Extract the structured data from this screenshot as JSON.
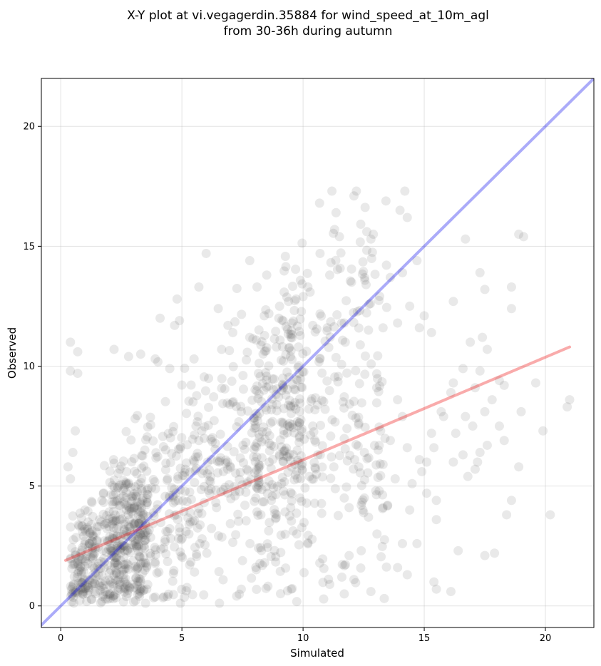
{
  "chart_data": {
    "type": "scatter",
    "title": "X-Y plot at vi.vegagerdin.35884 for wind_speed_at_10m_agl",
    "subtitle": "from 30-36h during autumn",
    "xlabel": "Simulated",
    "ylabel": "Observed",
    "xlim": [
      -0.8,
      22
    ],
    "ylim": [
      -0.9,
      22
    ],
    "xticks": [
      0,
      5,
      10,
      15,
      20
    ],
    "yticks": [
      0,
      5,
      10,
      15,
      20
    ],
    "grid": true,
    "colors": {
      "points": "#555555",
      "identity": "#0000ee",
      "fit": "#ee0000"
    },
    "lines": [
      {
        "kind": "identity",
        "x": [
          -0.8,
          22
        ],
        "y": [
          -0.8,
          22
        ]
      },
      {
        "kind": "fit",
        "x": [
          0.2,
          21
        ],
        "y": [
          1.9,
          10.8
        ]
      }
    ],
    "points": [
      [
        0.4,
        11.0
      ],
      [
        0.4,
        9.8
      ],
      [
        0.7,
        10.6
      ],
      [
        0.7,
        9.7
      ],
      [
        0.6,
        7.3
      ],
      [
        0.5,
        6.4
      ],
      [
        0.3,
        5.8
      ],
      [
        0.4,
        5.3
      ],
      [
        2.2,
        10.7
      ],
      [
        2.8,
        10.4
      ],
      [
        3.3,
        10.5
      ],
      [
        3.9,
        10.3
      ],
      [
        4.7,
        11.7
      ],
      [
        4.9,
        11.9
      ],
      [
        5.5,
        10.3
      ],
      [
        6.0,
        14.7
      ],
      [
        5.7,
        13.3
      ],
      [
        6.5,
        12.4
      ],
      [
        4.1,
        12.0
      ],
      [
        4.5,
        9.9
      ],
      [
        4.8,
        12.8
      ],
      [
        7.8,
        14.4
      ],
      [
        8.4,
        12.1
      ],
      [
        8.5,
        13.8
      ],
      [
        8.1,
        13.3
      ],
      [
        9.0,
        12.0
      ],
      [
        9.4,
        12.7
      ],
      [
        10.0,
        12.9
      ],
      [
        10.2,
        13.3
      ],
      [
        10.7,
        14.7
      ],
      [
        11.1,
        13.8
      ],
      [
        11.3,
        15.7
      ],
      [
        11.5,
        15.4
      ],
      [
        12.2,
        17.3
      ],
      [
        12.1,
        17.1
      ],
      [
        12.8,
        15.3
      ],
      [
        12.9,
        15.5
      ],
      [
        12.6,
        13.4
      ],
      [
        12.0,
        13.5
      ],
      [
        13.6,
        13.7
      ],
      [
        14.0,
        16.5
      ],
      [
        14.3,
        16.2
      ],
      [
        14.2,
        17.3
      ],
      [
        14.7,
        14.4
      ],
      [
        14.1,
        13.9
      ],
      [
        14.4,
        12.5
      ],
      [
        14.8,
        11.6
      ],
      [
        15.0,
        12.1
      ],
      [
        15.3,
        11.4
      ],
      [
        16.2,
        12.7
      ],
      [
        16.7,
        15.3
      ],
      [
        17.3,
        13.9
      ],
      [
        17.5,
        13.2
      ],
      [
        18.6,
        13.3
      ],
      [
        18.6,
        12.4
      ],
      [
        18.9,
        15.5
      ],
      [
        19.1,
        15.4
      ],
      [
        17.4,
        11.2
      ],
      [
        16.9,
        11.0
      ],
      [
        17.6,
        10.7
      ],
      [
        13.9,
        11.8
      ],
      [
        13.3,
        11.6
      ],
      [
        12.7,
        11.5
      ],
      [
        11.7,
        11.8
      ],
      [
        11.0,
        11.6
      ],
      [
        10.4,
        11.7
      ],
      [
        9.5,
        11.2
      ],
      [
        8.9,
        10.8
      ],
      [
        7.8,
        11.2
      ],
      [
        7.1,
        11.4
      ],
      [
        6.9,
        11.7
      ],
      [
        16.2,
        9.3
      ],
      [
        16.6,
        9.9
      ],
      [
        17.1,
        9.1
      ],
      [
        17.3,
        9.8
      ],
      [
        18.1,
        9.4
      ],
      [
        18.3,
        9.2
      ],
      [
        19.6,
        9.3
      ],
      [
        17.5,
        8.1
      ],
      [
        17.8,
        8.6
      ],
      [
        16.1,
        8.9
      ],
      [
        15.7,
        8.1
      ],
      [
        15.3,
        7.2
      ],
      [
        15.4,
        6.6
      ],
      [
        14.8,
        6.1
      ],
      [
        14.3,
        6.6
      ],
      [
        14.1,
        7.9
      ],
      [
        13.9,
        8.6
      ],
      [
        13.2,
        7.3
      ],
      [
        13.6,
        6.9
      ],
      [
        15.8,
        7.9
      ],
      [
        16.7,
        7.9
      ],
      [
        16.3,
        7.2
      ],
      [
        17.0,
        7.5
      ],
      [
        17.6,
        6.7
      ],
      [
        18.1,
        7.5
      ],
      [
        18.3,
        6.9
      ],
      [
        19.0,
        8.1
      ],
      [
        19.9,
        7.3
      ],
      [
        20.9,
        8.3
      ],
      [
        21.0,
        8.6
      ],
      [
        15.1,
        6.0
      ],
      [
        14.9,
        5.6
      ],
      [
        14.5,
        5.1
      ],
      [
        15.1,
        4.7
      ],
      [
        15.5,
        4.4
      ],
      [
        14.4,
        4.0
      ],
      [
        13.8,
        5.3
      ],
      [
        13.3,
        5.9
      ],
      [
        13.1,
        6.5
      ],
      [
        16.2,
        6.0
      ],
      [
        16.6,
        6.3
      ],
      [
        17.1,
        5.7
      ],
      [
        17.2,
        6.0
      ],
      [
        16.8,
        5.4
      ],
      [
        17.3,
        6.4
      ],
      [
        16.4,
        2.3
      ],
      [
        17.5,
        2.1
      ],
      [
        17.9,
        2.2
      ],
      [
        18.4,
        3.8
      ],
      [
        18.6,
        4.4
      ],
      [
        18.9,
        5.8
      ],
      [
        20.2,
        3.8
      ],
      [
        15.5,
        3.6
      ],
      [
        15.4,
        1.0
      ],
      [
        15.5,
        0.7
      ],
      [
        16.1,
        0.6
      ],
      [
        14.7,
        2.6
      ],
      [
        14.1,
        2.6
      ],
      [
        14.3,
        1.3
      ],
      [
        13.9,
        1.6
      ],
      [
        12.1,
        1.1
      ],
      [
        11.6,
        1.2
      ],
      [
        11.1,
        0.9
      ],
      [
        11.7,
        0.5
      ],
      [
        12.8,
        0.6
      ],
      [
        11.9,
        2.1
      ],
      [
        12.4,
        2.3
      ],
      [
        12.4,
        4.2
      ],
      [
        11.9,
        4.1
      ],
      [
        12.7,
        3.7
      ],
      [
        13.0,
        4.8
      ],
      [
        12.3,
        5.8
      ]
    ],
    "cloud_count": 1300
  }
}
